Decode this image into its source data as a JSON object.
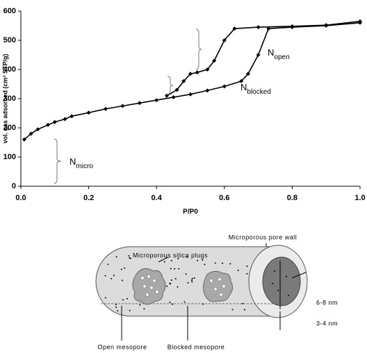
{
  "chart_data": {
    "type": "line",
    "xlabel": "P/P0",
    "ylabel": "vol. gas adsorbed (cm³ STP/g)",
    "xlim": [
      0,
      1
    ],
    "ylim": [
      0,
      600
    ],
    "xticks": [
      {
        "value": 0,
        "label": "0.0"
      },
      {
        "value": 0.2,
        "label": "0.2"
      },
      {
        "value": 0.4,
        "label": "0.4"
      },
      {
        "value": 0.6,
        "label": "0.6"
      },
      {
        "value": 0.8,
        "label": "0.8"
      },
      {
        "value": 1,
        "label": "1.0"
      }
    ],
    "yticks": [
      0,
      100,
      200,
      300,
      400,
      500,
      600
    ],
    "series": [
      {
        "color": "#000000",
        "x": [
          0.01,
          0.03,
          0.05,
          0.08,
          0.1,
          0.13,
          0.15,
          0.2,
          0.25,
          0.3,
          0.35,
          0.4,
          0.45,
          0.5,
          0.55,
          0.6,
          0.65,
          0.67,
          0.7,
          0.73,
          0.8,
          0.9,
          1.0
        ],
        "values": [
          160,
          180,
          195,
          210,
          220,
          230,
          240,
          252,
          265,
          275,
          285,
          295,
          305,
          315,
          328,
          342,
          360,
          385,
          450,
          540,
          545,
          550,
          560
        ]
      },
      {
        "color": "#000000",
        "x": [
          0.43,
          0.46,
          0.48,
          0.5,
          0.52,
          0.55,
          0.57,
          0.6,
          0.63,
          0.7,
          0.8,
          0.9,
          1.0
        ],
        "values": [
          310,
          330,
          360,
          385,
          390,
          400,
          430,
          500,
          540,
          545,
          548,
          552,
          565
        ]
      }
    ],
    "annotations": [
      {
        "text": "N",
        "sub": "open"
      },
      {
        "text": "N",
        "sub": "blocked"
      },
      {
        "text": "N",
        "sub": "micro"
      }
    ]
  },
  "diagram": {
    "labels": [
      "Microporous pore wall",
      "Microporous silica plugs",
      "6-8 nm",
      "3-4 nm",
      "Open mesopore",
      "Blocked mesopore"
    ]
  }
}
